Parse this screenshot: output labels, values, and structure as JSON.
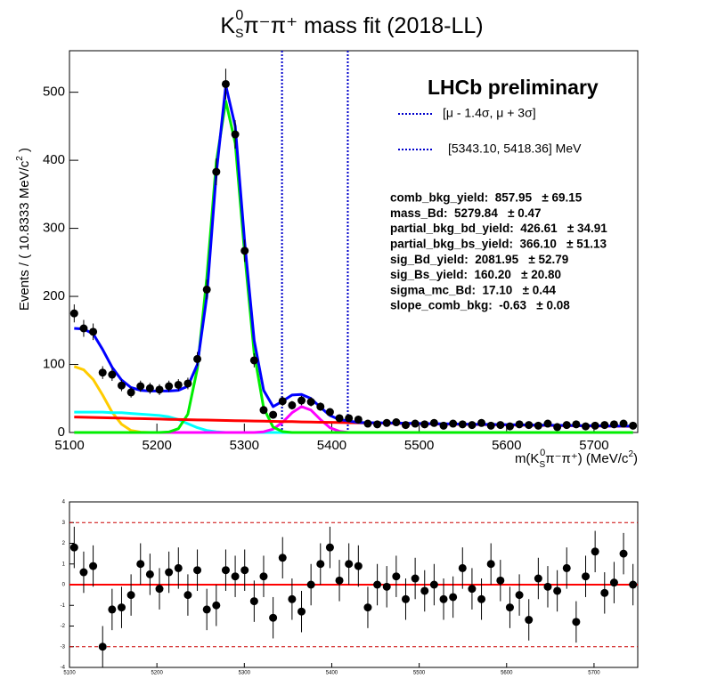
{
  "chart_data": [
    {
      "type": "scatter",
      "title": [
        "K",
        "S",
        "0",
        "π⁻π⁺ mass fit (2018-LL)"
      ],
      "x_label": [
        "m(K",
        "S",
        "0",
        "π⁻π⁺) (MeV/c",
        "2",
        ")"
      ],
      "y_label": [
        "Events / ( 10.8333 MeV/c",
        "2",
        " )"
      ],
      "xlim": [
        5100,
        5750
      ],
      "ylim": [
        0,
        561
      ],
      "xticks": [
        5100,
        5200,
        5300,
        5400,
        5500,
        5600,
        5700
      ],
      "yticks": [
        0,
        100,
        200,
        300,
        400,
        500
      ],
      "x": [
        5105.42,
        5116.25,
        5127.08,
        5137.92,
        5148.75,
        5159.58,
        5170.42,
        5181.25,
        5192.08,
        5202.92,
        5213.75,
        5224.58,
        5235.42,
        5246.25,
        5257.08,
        5267.92,
        5278.75,
        5289.58,
        5300.42,
        5311.25,
        5322.08,
        5332.92,
        5343.75,
        5354.58,
        5365.42,
        5376.25,
        5387.08,
        5397.92,
        5408.75,
        5419.58,
        5430.42,
        5441.25,
        5452.08,
        5462.92,
        5473.75,
        5484.58,
        5495.42,
        5506.25,
        5517.08,
        5527.92,
        5538.75,
        5549.58,
        5560.42,
        5571.25,
        5582.08,
        5592.92,
        5603.75,
        5614.58,
        5625.42,
        5636.25,
        5647.08,
        5657.92,
        5668.75,
        5679.58,
        5690.42,
        5701.25,
        5712.08,
        5722.92,
        5733.75,
        5744.58
      ],
      "series": [
        {
          "color": "#ffcc00",
          "values": [
            97,
            92,
            78,
            55,
            30,
            12,
            3,
            0.5,
            0,
            0,
            0,
            0,
            0,
            0,
            0,
            0,
            0,
            0,
            0,
            0,
            0,
            0,
            0,
            0,
            0,
            0,
            0,
            0,
            0,
            0,
            0,
            0,
            0,
            0,
            0,
            0,
            0,
            0,
            0,
            0,
            0,
            0,
            0,
            0,
            0,
            0,
            0,
            0,
            0,
            0,
            0,
            0,
            0,
            0,
            0,
            0,
            0,
            0,
            0,
            0
          ]
        },
        {
          "color": "#00ffff",
          "values": [
            30,
            30,
            30,
            30,
            29,
            29,
            28,
            27,
            26,
            25,
            23,
            19,
            13,
            7,
            3,
            1,
            0,
            0,
            0,
            0,
            0,
            0,
            0,
            0,
            0,
            0,
            0,
            0,
            0,
            0,
            0,
            0,
            0,
            0,
            0,
            0,
            0,
            0,
            0,
            0,
            0,
            0,
            0,
            0,
            0,
            0,
            0,
            0,
            0,
            0,
            0,
            0,
            0,
            0,
            0,
            0,
            0,
            0,
            0,
            0
          ]
        },
        {
          "color": "#ff00ff",
          "values": [
            0,
            0,
            0,
            0,
            0,
            0,
            0,
            0,
            0,
            0,
            0,
            0,
            0,
            0,
            0,
            0,
            0,
            0,
            0,
            0,
            1,
            5,
            15,
            29,
            38,
            33,
            19,
            7,
            1.7,
            0,
            0,
            0,
            0,
            0,
            0,
            0,
            0,
            0,
            0,
            0,
            0,
            0,
            0,
            0,
            0,
            0,
            0,
            0,
            0,
            0,
            0,
            0,
            0,
            0,
            0,
            0,
            0,
            0,
            0,
            0
          ]
        },
        {
          "color": "#00ee00",
          "values": [
            0,
            0,
            0,
            0,
            0,
            0,
            0,
            0,
            0,
            0,
            0.8,
            5.6,
            27,
            94,
            228,
            397,
            487,
            425,
            262,
            116,
            36,
            8,
            1.3,
            0,
            0,
            0,
            0,
            0,
            0,
            0,
            0,
            0,
            0,
            0,
            0,
            0,
            0,
            0,
            0,
            0,
            0,
            0,
            0,
            0,
            0,
            0,
            0,
            0,
            0,
            0,
            0,
            0,
            0,
            0,
            0,
            0,
            0,
            0,
            0,
            0
          ]
        },
        {
          "color": "#ff0000",
          "values": [
            22.8,
            22.4,
            22.1,
            21.7,
            21.4,
            21.0,
            20.7,
            20.4,
            20.1,
            19.8,
            19.4,
            19.1,
            18.8,
            18.5,
            18.3,
            18.0,
            17.7,
            17.4,
            17.1,
            16.9,
            16.6,
            16.4,
            16.1,
            15.9,
            15.6,
            15.4,
            15.1,
            14.9,
            14.7,
            14.4,
            14.2,
            14.0,
            13.8,
            13.6,
            13.3,
            13.1,
            12.9,
            12.7,
            12.5,
            12.3,
            12.1,
            11.9,
            11.8,
            11.6,
            11.4,
            11.2,
            11.0,
            10.9,
            10.7,
            10.5,
            10.4,
            10.2,
            10.0,
            9.9,
            9.7,
            9.6,
            9.4,
            9.3,
            9.1,
            9.0
          ]
        },
        {
          "color": "#0000ff",
          "values": [
            153,
            152,
            145,
            122,
            96,
            77,
            66,
            62,
            61,
            61,
            61,
            62,
            68,
            100,
            200,
            380,
            510,
            450,
            280,
            135,
            62,
            38,
            46,
            55,
            56,
            50,
            37,
            25,
            19,
            17,
            14.7,
            14.4,
            14.2,
            14.0,
            13.8,
            13.6,
            13.3,
            13.1,
            12.9,
            12.7,
            12.5,
            12.3,
            12.1,
            11.9,
            11.8,
            11.6,
            11.4,
            11.2,
            11.0,
            10.9,
            10.7,
            10.5,
            10.4,
            10.2,
            10.0,
            9.9,
            9.7,
            9.6,
            9.4,
            9.3
          ]
        },
        {
          "color": "#000000",
          "values": [
            175,
            153,
            148,
            88,
            85,
            69,
            59,
            68,
            65,
            63,
            68,
            70,
            72,
            108,
            210,
            383,
            512,
            438,
            267,
            106,
            33,
            26,
            46,
            40,
            47,
            45,
            38,
            30,
            21,
            21,
            19,
            13,
            12,
            14,
            15,
            11,
            13,
            12,
            14,
            10,
            13,
            12,
            11,
            14,
            10,
            11,
            9,
            12,
            11,
            10,
            13,
            8,
            11,
            12,
            9,
            10,
            11,
            12,
            13,
            10
          ],
          "errors": [
            13.2,
            12.4,
            12.2,
            9.4,
            9.2,
            8.3,
            7.7,
            8.2,
            8.1,
            7.9,
            8.2,
            8.4,
            8.5,
            10.4,
            14.5,
            19.6,
            22.6,
            20.9,
            16.3,
            10.3,
            5.7,
            5.1,
            6.8,
            6.3,
            6.9,
            6.7,
            6.2,
            5.5,
            4.6,
            4.6,
            4.4,
            3.6,
            3.5,
            3.7,
            3.9,
            3.3,
            3.6,
            3.5,
            3.7,
            3.2,
            3.6,
            3.5,
            3.3,
            3.7,
            3.2,
            3.3,
            3.0,
            3.5,
            3.3,
            3.2,
            3.6,
            2.8,
            3.3,
            3.5,
            3.0,
            3.2,
            3.3,
            3.5,
            3.6,
            3.2
          ]
        }
      ],
      "vlines": {
        "values": [
          5343.1,
          5418.36
        ],
        "color": "#0000cc"
      },
      "label": "LHCb preliminary",
      "ranges": [
        "[μ - 1.4σ,   μ + 3σ]",
        "[5343.10, 5418.36] MeV"
      ],
      "params": [
        "comb_bkg_yield:  857.95   ± 69.15",
        "mass_Bd:  5279.84   ± 0.47",
        "partial_bkg_bd_yield:  426.61   ± 34.91",
        "partial_bkg_bs_yield:  366.10   ± 51.13",
        "sig_Bd_yield:  2081.95   ± 52.79",
        "sig_Bs_yield:  160.20   ± 20.80",
        "sigma_mc_Bd:  17.10   ± 0.44",
        "slope_comb_bkg:  -0.63   ± 0.08"
      ]
    },
    {
      "type": "scatter",
      "xlim": [
        5100,
        5750
      ],
      "ylim": [
        -4,
        4
      ],
      "xticks": [
        5100,
        5200,
        5300,
        5400,
        5500,
        5600,
        5700
      ],
      "yticks": [
        -4,
        -3,
        -2,
        -1,
        0,
        1,
        2,
        3,
        4
      ],
      "x": [
        5105.42,
        5116.25,
        5127.08,
        5137.92,
        5148.75,
        5159.58,
        5170.42,
        5181.25,
        5192.08,
        5202.92,
        5213.75,
        5224.58,
        5235.42,
        5246.25,
        5257.08,
        5267.92,
        5278.75,
        5289.58,
        5300.42,
        5311.25,
        5322.08,
        5332.92,
        5343.75,
        5354.58,
        5365.42,
        5376.25,
        5387.08,
        5397.92,
        5408.75,
        5419.58,
        5430.42,
        5441.25,
        5452.08,
        5462.92,
        5473.75,
        5484.58,
        5495.42,
        5506.25,
        5517.08,
        5527.92,
        5538.75,
        5549.58,
        5560.42,
        5571.25,
        5582.08,
        5592.92,
        5603.75,
        5614.58,
        5625.42,
        5636.25,
        5647.08,
        5657.92,
        5668.75,
        5679.58,
        5690.42,
        5701.25,
        5712.08,
        5722.92,
        5733.75,
        5744.58
      ],
      "hlines": [
        {
          "value": 0,
          "color": "#ff0000",
          "dashed": false
        },
        {
          "value": 3,
          "color": "#cc0000",
          "dashed": true
        },
        {
          "value": -3,
          "color": "#cc0000",
          "dashed": true
        }
      ],
      "series": [
        {
          "color": "#000000",
          "values": [
            1.8,
            0.6,
            0.9,
            -3.0,
            -1.2,
            -1.1,
            -0.5,
            1.0,
            0.5,
            -0.2,
            0.6,
            0.8,
            -0.5,
            0.7,
            -1.2,
            -1.0,
            0.7,
            0.4,
            0.7,
            -0.8,
            0.4,
            -1.6,
            1.3,
            -0.7,
            -1.3,
            0,
            1.0,
            1.8,
            0.2,
            1.0,
            0.9,
            -1.1,
            0,
            -0.1,
            0.4,
            -0.7,
            0.3,
            -0.3,
            0,
            -0.7,
            -0.6,
            0.8,
            -0.2,
            -0.7,
            1.0,
            0.2,
            -1.1,
            -0.5,
            -1.7,
            0.3,
            -0.1,
            -0.3,
            0.8,
            -1.8,
            0.4,
            1.6,
            -0.4,
            0.1,
            1.5,
            0
          ],
          "errors": [
            1,
            1,
            1,
            1,
            1,
            1,
            1,
            1,
            1,
            1,
            1,
            1,
            1,
            1,
            1,
            1,
            1,
            1,
            1,
            1,
            1,
            1,
            1,
            1,
            1,
            1,
            1,
            1,
            1,
            1,
            1,
            1,
            1,
            1,
            1,
            1,
            1,
            1,
            1,
            1,
            1,
            1,
            1,
            1,
            1,
            1,
            1,
            1,
            1,
            1,
            1,
            1,
            1,
            1,
            1,
            1,
            1,
            1,
            1,
            1
          ]
        }
      ]
    }
  ]
}
